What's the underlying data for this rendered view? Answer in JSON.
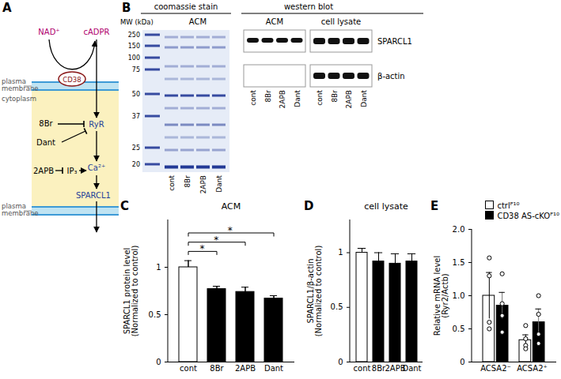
{
  "diagram": {
    "panel_label": "A",
    "membrane_labels": [
      "plasma\nmembrane",
      "plasma\nmembrane"
    ],
    "cytoplasm_label": "cytoplasm",
    "nodes": {
      "nad": "NAD⁺",
      "cadpr": "cADPR",
      "cd38": "CD38",
      "ryr": "RyR",
      "br": "8Br",
      "dant": "Dant",
      "apb": "2APB",
      "ip3": "IP₃",
      "ca": "Ca²⁺",
      "sparcl1": "SPARCL1"
    }
  },
  "blot": {
    "panel_label": "B",
    "gel": {
      "header": "coomassie stain",
      "sample": "ACM",
      "mw_label": "MW (kDa)",
      "mw_markers": [
        250,
        150,
        100,
        75,
        50,
        37,
        25,
        20
      ],
      "lanes": [
        "cont",
        "8Br",
        "2APB",
        "Dant"
      ]
    },
    "western": {
      "header": "western blot",
      "panels": [
        "ACM",
        "cell lysate"
      ],
      "proteins": [
        "SPARCL1",
        "β-actin"
      ],
      "lanes": [
        "cont",
        "8Br",
        "2APB",
        "Dant"
      ]
    }
  },
  "chart_data": [
    {
      "panel_label": "C",
      "type": "bar",
      "title": "ACM",
      "y_label": "SPARCL1 protein level\n(Normalized to control)",
      "categories": [
        "cont",
        "8Br",
        "2APB",
        "Dant"
      ],
      "values": [
        1.0,
        0.77,
        0.74,
        0.67
      ],
      "errors": [
        0.07,
        0.03,
        0.05,
        0.03
      ],
      "colors": [
        "#ffffff",
        "#000000",
        "#000000",
        "#000000"
      ],
      "ylim": [
        0,
        1.5
      ],
      "yticks": [
        0,
        0.5,
        1
      ],
      "annotations": [
        {
          "from": "cont",
          "to": "8Br",
          "text": "*"
        },
        {
          "from": "cont",
          "to": "2APB",
          "text": "*"
        },
        {
          "from": "cont",
          "to": "Dant",
          "text": "*"
        }
      ]
    },
    {
      "panel_label": "D",
      "type": "bar",
      "title": "cell lysate",
      "y_label": "SPARCL1/β-actin\n(Normalized to control)",
      "categories": [
        "cont",
        "8Br",
        "2APB",
        "Dant"
      ],
      "values": [
        1.0,
        0.92,
        0.9,
        0.92
      ],
      "errors": [
        0.04,
        0.08,
        0.09,
        0.07
      ],
      "colors": [
        "#ffffff",
        "#000000",
        "#000000",
        "#000000"
      ],
      "ylim": [
        0,
        1.3
      ],
      "yticks": [
        0,
        0.5,
        1
      ]
    },
    {
      "panel_label": "E",
      "type": "bar",
      "y_label": "Relative mRNA level\n(Ryr2/Actb)",
      "categories": [
        "ACSA2⁻",
        "ACSA2⁺"
      ],
      "series": [
        {
          "name": "ctrlᴾ¹⁰",
          "color": "#ffffff",
          "values": [
            1.0,
            0.33
          ],
          "errors": [
            0.35,
            0.08
          ],
          "points": [
            [
              1.57,
              1.3,
              0.6,
              0.5
            ],
            [
              0.55,
              0.35,
              0.25,
              0.2
            ]
          ]
        },
        {
          "name": "CD38 AS-cKOᴾ¹⁰",
          "color": "#000000",
          "values": [
            0.85,
            0.6
          ],
          "errors": [
            0.2,
            0.2
          ],
          "points": [
            [
              1.33,
              0.88,
              0.7,
              0.45
            ],
            [
              1.0,
              0.72,
              0.42,
              0.28
            ]
          ]
        }
      ],
      "legend": "top-right",
      "ylim": [
        0,
        2
      ],
      "yticks": [
        0,
        0.5,
        {
          "value": 1,
          "label": "1.0"
        },
        1.5,
        {
          "value": 2,
          "label": "2.0"
        }
      ]
    }
  ]
}
